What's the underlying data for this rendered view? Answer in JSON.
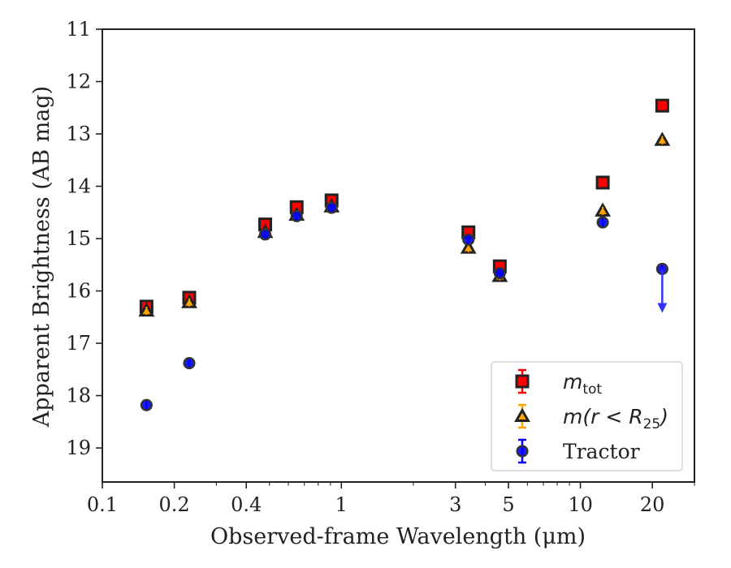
{
  "chart_data": {
    "type": "scatter",
    "xlabel": "Observed-frame Wavelength (μm)",
    "ylabel": "Apparent Brightness (AB mag)",
    "x_scale": "log",
    "xlim": [
      0.1,
      30
    ],
    "ylim": [
      19.65,
      11
    ],
    "y_inverted": true,
    "x_ticks": [
      {
        "value": 0.1,
        "label": "0.1"
      },
      {
        "value": 0.2,
        "label": "0.2"
      },
      {
        "value": 0.4,
        "label": "0.4"
      },
      {
        "value": 1,
        "label": "1"
      },
      {
        "value": 3,
        "label": "3"
      },
      {
        "value": 5,
        "label": "5"
      },
      {
        "value": 10,
        "label": "10"
      },
      {
        "value": 20,
        "label": "20"
      }
    ],
    "y_ticks": [
      {
        "value": 11,
        "label": "11"
      },
      {
        "value": 12,
        "label": "12"
      },
      {
        "value": 13,
        "label": "13"
      },
      {
        "value": 14,
        "label": "14"
      },
      {
        "value": 15,
        "label": "15"
      },
      {
        "value": 16,
        "label": "16"
      },
      {
        "value": 17,
        "label": "17"
      },
      {
        "value": 18,
        "label": "18"
      },
      {
        "value": 19,
        "label": "19"
      }
    ],
    "grid": false,
    "legend_position": "bottom-right",
    "series": [
      {
        "name_parts": {
          "base": "m",
          "sub": "tot",
          "rest": ""
        },
        "marker": "square",
        "color": "#ff0000",
        "edge_color": "#222222",
        "errorbar_color": "#ff0000",
        "x": [
          0.153,
          0.231,
          0.48,
          0.65,
          0.91,
          3.4,
          4.6,
          12.4,
          22.0
        ],
        "y": [
          16.3,
          16.13,
          14.73,
          14.4,
          14.27,
          14.88,
          15.53,
          13.93,
          12.46
        ]
      },
      {
        "name_parts": {
          "base": "m(r < R",
          "sub": "25",
          "rest": ")"
        },
        "marker": "triangle",
        "color": "#ffa500",
        "edge_color": "#222222",
        "errorbar_color": "#ffa500",
        "x": [
          0.153,
          0.231,
          0.48,
          0.65,
          0.91,
          3.4,
          4.6,
          12.4,
          22.0
        ],
        "y": [
          16.38,
          16.22,
          14.88,
          14.55,
          14.39,
          15.18,
          15.72,
          14.47,
          13.12
        ]
      },
      {
        "name": "Tractor",
        "marker": "circle",
        "color": "#0000ff",
        "edge_color": "#333333",
        "errorbar_color": "#0000ff",
        "x": [
          0.153,
          0.231,
          0.48,
          0.65,
          0.91,
          3.4,
          4.6,
          12.4,
          22.0
        ],
        "y": [
          18.18,
          17.38,
          14.92,
          14.57,
          14.41,
          15.02,
          15.66,
          14.69,
          15.58
        ],
        "upper_limit_index": 8
      }
    ]
  }
}
